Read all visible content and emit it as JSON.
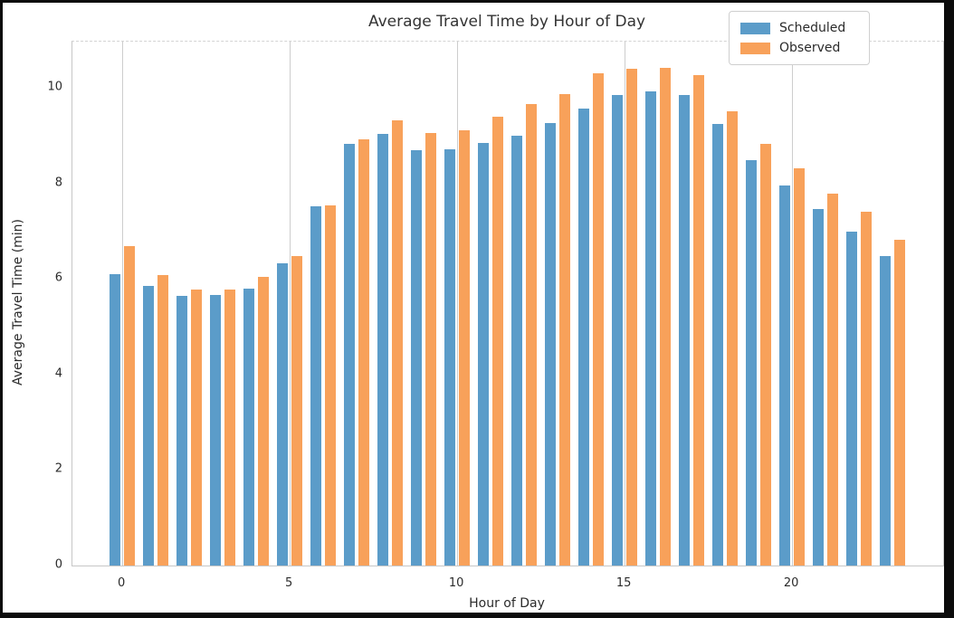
{
  "chart_data": {
    "type": "bar",
    "title": "Average Travel Time by Hour of Day",
    "xlabel": "Hour of Day",
    "ylabel": "Average Travel Time (min)",
    "categories": [
      0,
      1,
      2,
      3,
      4,
      5,
      6,
      7,
      8,
      9,
      10,
      11,
      12,
      13,
      14,
      15,
      16,
      17,
      18,
      19,
      20,
      21,
      22,
      23
    ],
    "series": [
      {
        "name": "Scheduled",
        "color": "#5b9cc9",
        "values": [
          6.1,
          5.85,
          5.65,
          5.67,
          5.8,
          6.33,
          7.52,
          8.83,
          9.04,
          8.7,
          8.71,
          8.85,
          9.0,
          9.27,
          9.56,
          9.85,
          9.93,
          9.85,
          9.24,
          8.48,
          7.96,
          7.46,
          6.99,
          6.48
        ]
      },
      {
        "name": "Observed",
        "color": "#f8a15a",
        "values": [
          6.68,
          6.08,
          5.78,
          5.77,
          6.05,
          6.48,
          7.55,
          8.92,
          9.33,
          9.06,
          9.12,
          9.4,
          9.66,
          9.87,
          10.3,
          10.4,
          10.42,
          10.26,
          9.51,
          8.82,
          8.31,
          7.79,
          7.4,
          6.82
        ]
      }
    ],
    "ylim": [
      0,
      10.97
    ],
    "y_ticks": [
      0,
      2,
      4,
      6,
      8,
      10
    ],
    "x_ticks": [
      0,
      5,
      10,
      15,
      20
    ],
    "grid": "vertical-gridlines-only",
    "legend_position": "upper-right",
    "legend_items": [
      "Scheduled",
      "Observed"
    ]
  }
}
